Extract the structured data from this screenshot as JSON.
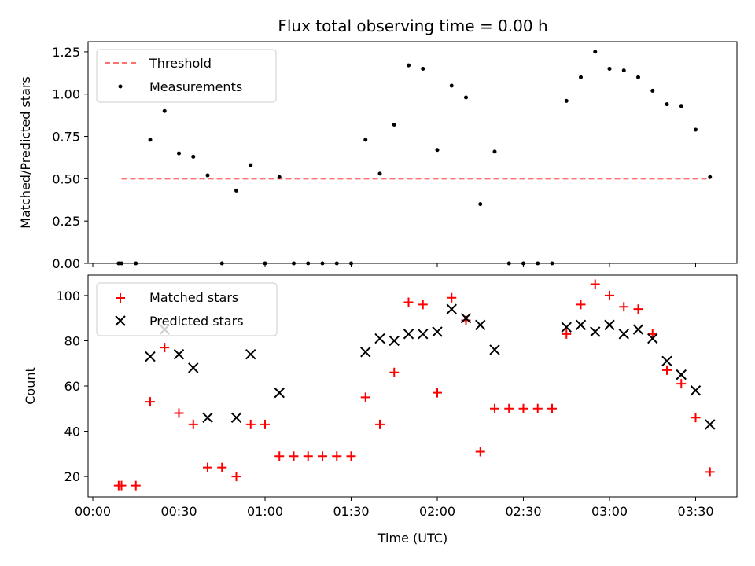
{
  "chart_data": {
    "title": "Flux total observing time = 0.00 h",
    "xlabel": "Time (UTC)",
    "x_ticks": [
      "00:00",
      "00:30",
      "01:00",
      "01:30",
      "02:00",
      "02:30",
      "03:00",
      "03:30"
    ],
    "top": {
      "type": "scatter",
      "ylabel": "Matched/Predicted stars",
      "ylim": [
        0,
        1.31
      ],
      "y_ticks": [
        "0.00",
        "0.25",
        "0.50",
        "0.75",
        "1.00",
        "1.25"
      ],
      "legend": {
        "placement": "top-left",
        "entries": [
          "Threshold",
          "Measurements"
        ]
      },
      "threshold": {
        "name": "Threshold",
        "value": 0.5,
        "x_start": "00:10",
        "x_end": "03:35",
        "color": "#ff7070"
      },
      "series": [
        {
          "name": "Measurements",
          "color": "#000000",
          "x": [
            "00:09",
            "00:10",
            "00:15",
            "00:20",
            "00:25",
            "00:30",
            "00:35",
            "00:40",
            "00:45",
            "00:50",
            "00:55",
            "01:00",
            "01:05",
            "01:10",
            "01:15",
            "01:20",
            "01:25",
            "01:30",
            "01:35",
            "01:40",
            "01:45",
            "01:50",
            "01:55",
            "02:00",
            "02:05",
            "02:10",
            "02:15",
            "02:20",
            "02:25",
            "02:30",
            "02:35",
            "02:40",
            "02:45",
            "02:50",
            "02:55",
            "03:00",
            "03:05",
            "03:10",
            "03:15",
            "03:20",
            "03:25",
            "03:30",
            "03:35"
          ],
          "y": [
            0.0,
            0.0,
            0.0,
            0.73,
            0.9,
            0.65,
            0.63,
            0.52,
            0.0,
            0.43,
            0.58,
            0.0,
            0.51,
            0.0,
            0.0,
            0.0,
            0.0,
            0.0,
            0.73,
            0.53,
            0.82,
            1.17,
            1.15,
            0.67,
            1.05,
            0.98,
            0.35,
            0.66,
            0.0,
            0.0,
            0.0,
            0.0,
            0.96,
            1.1,
            1.25,
            1.15,
            1.14,
            1.1,
            1.02,
            0.94,
            0.93,
            0.79,
            0.51
          ]
        }
      ]
    },
    "bottom": {
      "type": "scatter",
      "ylabel": "Count",
      "ylim": [
        11,
        109
      ],
      "y_ticks": [
        "20",
        "40",
        "60",
        "80",
        "100"
      ],
      "legend": {
        "placement": "top-left",
        "entries": [
          "Matched stars",
          "Predicted stars"
        ]
      },
      "series": [
        {
          "name": "Matched stars",
          "marker": "+",
          "color": "#ff0000",
          "x": [
            "00:09",
            "00:10",
            "00:15",
            "00:20",
            "00:25",
            "00:30",
            "00:35",
            "00:40",
            "00:45",
            "00:50",
            "00:55",
            "01:00",
            "01:05",
            "01:10",
            "01:15",
            "01:20",
            "01:25",
            "01:30",
            "01:35",
            "01:40",
            "01:45",
            "01:50",
            "01:55",
            "02:00",
            "02:05",
            "02:10",
            "02:15",
            "02:20",
            "02:25",
            "02:30",
            "02:35",
            "02:40",
            "02:45",
            "02:50",
            "02:55",
            "03:00",
            "03:05",
            "03:10",
            "03:15",
            "03:20",
            "03:25",
            "03:30",
            "03:35"
          ],
          "y": [
            16,
            16,
            16,
            53,
            77,
            48,
            43,
            24,
            24,
            20,
            43,
            43,
            29,
            29,
            29,
            29,
            29,
            29,
            55,
            43,
            66,
            97,
            96,
            57,
            99,
            89,
            31,
            50,
            50,
            50,
            50,
            50,
            83,
            96,
            105,
            100,
            95,
            94,
            83,
            67,
            61,
            46,
            22
          ]
        },
        {
          "name": "Predicted stars",
          "marker": "x",
          "color": "#000000",
          "x": [
            "00:20",
            "00:25",
            "00:30",
            "00:35",
            "00:40",
            "00:50",
            "00:55",
            "01:05",
            "01:35",
            "01:40",
            "01:45",
            "01:50",
            "01:55",
            "02:00",
            "02:05",
            "02:10",
            "02:15",
            "02:20",
            "02:45",
            "02:50",
            "02:55",
            "03:00",
            "03:05",
            "03:10",
            "03:15",
            "03:20",
            "03:25",
            "03:30",
            "03:35"
          ],
          "y": [
            73,
            85,
            74,
            68,
            46,
            46,
            74,
            57,
            75,
            81,
            80,
            83,
            83,
            84,
            94,
            90,
            87,
            76,
            86,
            87,
            84,
            87,
            83,
            85,
            81,
            71,
            65,
            58,
            43
          ]
        }
      ]
    }
  }
}
